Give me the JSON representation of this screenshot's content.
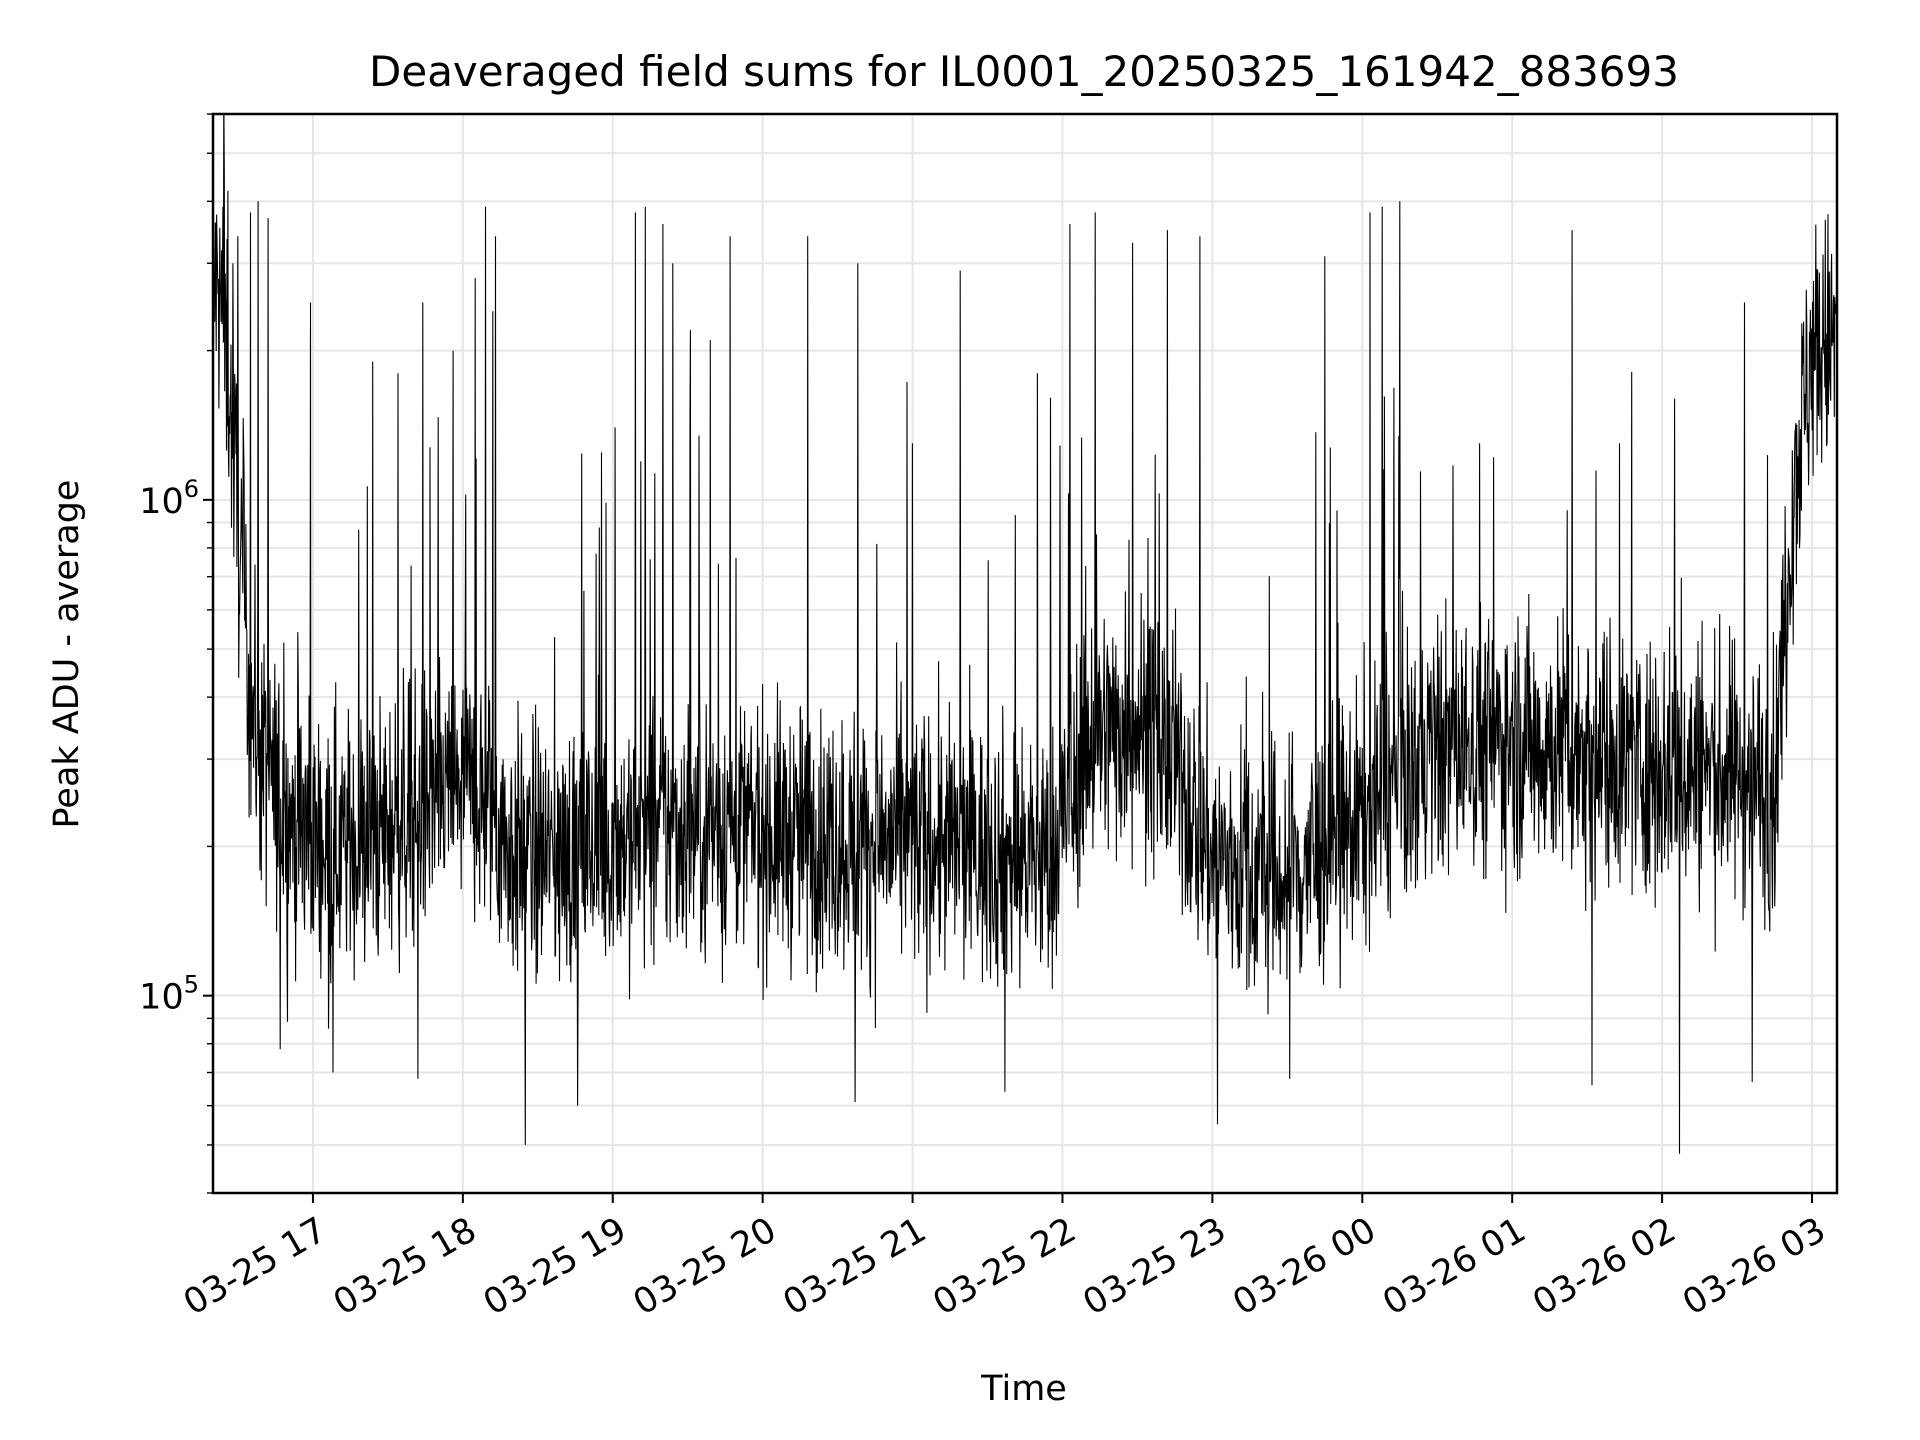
{
  "chart_data": {
    "type": "line",
    "title": "Deaveraged field sums for IL0001_20250325_161942_883693",
    "xlabel": "Time",
    "ylabel": "Peak ADU - average",
    "yscale": "log",
    "ylim": [
      40000,
      6000000
    ],
    "xlim": [
      "2025-03-25 16:20",
      "2025-03-26 03:10"
    ],
    "grid": true,
    "color": "#000000",
    "x_ticks": [
      {
        "t": "2025-03-25 17:00",
        "label": "03-25 17"
      },
      {
        "t": "2025-03-25 18:00",
        "label": "03-25 18"
      },
      {
        "t": "2025-03-25 19:00",
        "label": "03-25 19"
      },
      {
        "t": "2025-03-25 20:00",
        "label": "03-25 20"
      },
      {
        "t": "2025-03-25 21:00",
        "label": "03-25 21"
      },
      {
        "t": "2025-03-25 22:00",
        "label": "03-25 22"
      },
      {
        "t": "2025-03-25 23:00",
        "label": "03-25 23"
      },
      {
        "t": "2025-03-26 00:00",
        "label": "03-26 00"
      },
      {
        "t": "2025-03-26 01:00",
        "label": "03-26 01"
      },
      {
        "t": "2025-03-26 02:00",
        "label": "03-26 02"
      },
      {
        "t": "2025-03-26 03:00",
        "label": "03-26 03"
      }
    ],
    "y_ticks": [
      {
        "value": 100000,
        "base": "10",
        "exp": "5"
      },
      {
        "value": 1000000,
        "base": "10",
        "exp": "6"
      }
    ],
    "series": [
      {
        "points": [
          [
            "2025-03-25 16:20",
            2800000
          ],
          [
            "2025-03-25 16:25",
            2200000
          ],
          [
            "2025-03-25 16:30",
            900000
          ],
          [
            "2025-03-25 16:35",
            400000
          ],
          [
            "2025-03-25 16:40",
            290000
          ],
          [
            "2025-03-25 16:50",
            230000
          ],
          [
            "2025-03-25 17:00",
            210000
          ],
          [
            "2025-03-25 17:15",
            200000
          ],
          [
            "2025-03-25 17:30",
            215000
          ],
          [
            "2025-03-25 17:45",
            240000
          ],
          [
            "2025-03-25 18:00",
            270000
          ],
          [
            "2025-03-25 18:10",
            240000
          ],
          [
            "2025-03-25 18:20",
            195000
          ],
          [
            "2025-03-25 18:40",
            190000
          ],
          [
            "2025-03-25 19:00",
            205000
          ],
          [
            "2025-03-25 19:30",
            220000
          ],
          [
            "2025-03-25 20:00",
            215000
          ],
          [
            "2025-03-25 20:30",
            205000
          ],
          [
            "2025-03-25 21:00",
            205000
          ],
          [
            "2025-03-25 21:30",
            195000
          ],
          [
            "2025-03-25 21:55",
            185000
          ],
          [
            "2025-03-25 22:10",
            330000
          ],
          [
            "2025-03-25 22:30",
            360000
          ],
          [
            "2025-03-25 22:45",
            290000
          ],
          [
            "2025-03-25 23:00",
            190000
          ],
          [
            "2025-03-25 23:30",
            170000
          ],
          [
            "2025-03-26 00:00",
            230000
          ],
          [
            "2025-03-26 00:30",
            320000
          ],
          [
            "2025-03-26 01:00",
            330000
          ],
          [
            "2025-03-26 01:30",
            310000
          ],
          [
            "2025-03-26 02:00",
            290000
          ],
          [
            "2025-03-26 02:30",
            280000
          ],
          [
            "2025-03-26 02:45",
            260000
          ],
          [
            "2025-03-26 02:52",
            1000000
          ],
          [
            "2025-03-26 03:00",
            2000000
          ],
          [
            "2025-03-26 03:10",
            2100000
          ]
        ],
        "spikes": [
          [
            "2025-03-25 16:21",
            3600000
          ],
          [
            "2025-03-25 16:24",
            3900000
          ],
          [
            "2025-03-25 16:26",
            4200000
          ],
          [
            "2025-03-25 16:28",
            3000000
          ],
          [
            "2025-03-25 16:30",
            3400000
          ],
          [
            "2025-03-25 16:35",
            3800000
          ],
          [
            "2025-03-25 16:38",
            4000000
          ],
          [
            "2025-03-25 16:42",
            3700000
          ],
          [
            "2025-03-25 16:47",
            2500000
          ],
          [
            "2025-03-25 16:59",
            2500000
          ],
          [
            "2025-03-25 17:24",
            1900000
          ],
          [
            "2025-03-25 17:34",
            1800000
          ],
          [
            "2025-03-25 17:44",
            2500000
          ],
          [
            "2025-03-25 17:56",
            2000000
          ],
          [
            "2025-03-25 18:05",
            2800000
          ],
          [
            "2025-03-25 18:09",
            3900000
          ],
          [
            "2025-03-25 18:12",
            2400000
          ],
          [
            "2025-03-25 18:13",
            3400000
          ],
          [
            "2025-03-25 19:01",
            1400000
          ],
          [
            "2025-03-25 19:09",
            3800000
          ],
          [
            "2025-03-25 19:13",
            3900000
          ],
          [
            "2025-03-25 19:20",
            3600000
          ],
          [
            "2025-03-25 19:24",
            3000000
          ],
          [
            "2025-03-25 19:31",
            2200000
          ],
          [
            "2025-03-25 19:39",
            2100000
          ],
          [
            "2025-03-25 19:47",
            3400000
          ],
          [
            "2025-03-25 20:18",
            3400000
          ],
          [
            "2025-03-25 20:38",
            3000000
          ],
          [
            "2025-03-25 21:00",
            1300000
          ],
          [
            "2025-03-25 21:19",
            2900000
          ],
          [
            "2025-03-25 21:50",
            1800000
          ],
          [
            "2025-03-25 22:03",
            3600000
          ],
          [
            "2025-03-25 22:13",
            3800000
          ],
          [
            "2025-03-25 22:28",
            3300000
          ],
          [
            "2025-03-25 22:42",
            3500000
          ],
          [
            "2025-03-25 22:55",
            3400000
          ],
          [
            "2025-03-25 23:45",
            3100000
          ],
          [
            "2025-03-26 00:03",
            3800000
          ],
          [
            "2025-03-26 00:08",
            3900000
          ],
          [
            "2025-03-26 00:15",
            4000000
          ],
          [
            "2025-03-26 00:47",
            1300000
          ],
          [
            "2025-03-26 01:24",
            3500000
          ],
          [
            "2025-03-26 01:43",
            1300000
          ],
          [
            "2025-03-26 02:05",
            1600000
          ],
          [
            "2025-03-26 02:33",
            2500000
          ]
        ],
        "dips": [
          [
            "2025-03-25 16:47",
            78000
          ],
          [
            "2025-03-25 17:08",
            70000
          ],
          [
            "2025-03-25 17:42",
            68000
          ],
          [
            "2025-03-25 18:25",
            50000
          ],
          [
            "2025-03-25 18:46",
            60000
          ],
          [
            "2025-03-25 20:37",
            61000
          ],
          [
            "2025-03-25 21:37",
            64000
          ],
          [
            "2025-03-25 23:02",
            55000
          ],
          [
            "2025-03-25 23:31",
            68000
          ],
          [
            "2025-03-26 01:32",
            66000
          ],
          [
            "2025-03-26 02:07",
            48000
          ],
          [
            "2025-03-26 02:36",
            67000
          ]
        ],
        "spread": 0.45
      }
    ]
  }
}
